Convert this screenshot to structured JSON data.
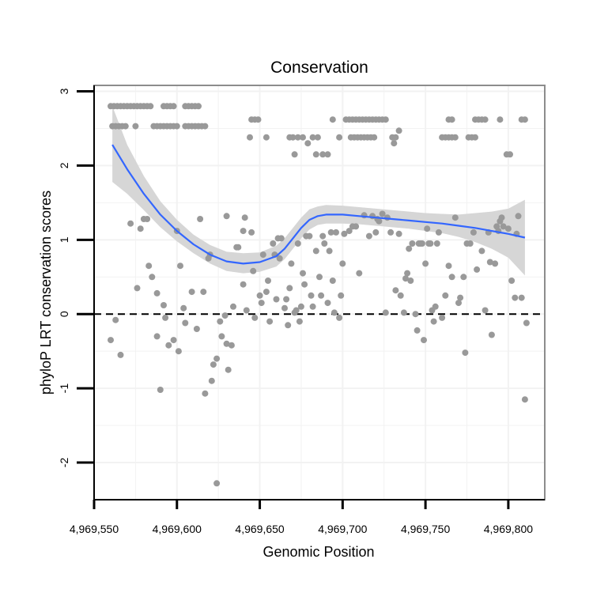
{
  "chart_data": {
    "type": "scatter",
    "title": "Conservation",
    "xlabel": "Genomic Position",
    "ylabel": "phyloP LRT conservation scores",
    "xlim": [
      4969550,
      4969822
    ],
    "ylim": [
      -2.5,
      3.08
    ],
    "xticks": [
      4969550,
      4969600,
      4969650,
      4969700,
      4969750,
      4969800
    ],
    "xtick_labels": [
      "4,969,550",
      "4,969,600",
      "4,969,650",
      "4,969,700",
      "4,969,750",
      "4,969,800"
    ],
    "yticks": [
      -2,
      -1,
      0,
      1,
      2,
      3
    ],
    "ytick_labels": [
      "-2",
      "-1",
      "0",
      "1",
      "2",
      "3"
    ],
    "grid": true,
    "reference_line": {
      "y": 0,
      "style": "dashed"
    },
    "colors": {
      "points": "#999999",
      "smooth": "#3366ff",
      "band": "#d6d6d6",
      "grid": "#f2f2f2",
      "frame": "#8c8c8c"
    },
    "smooth": {
      "x": [
        4969561,
        4969570,
        4969580,
        4969590,
        4969600,
        4969610,
        4969620,
        4969630,
        4969640,
        4969650,
        4969660,
        4969665,
        4969670,
        4969675,
        4969680,
        4969685,
        4969690,
        4969700,
        4969710,
        4969720,
        4969730,
        4969740,
        4969750,
        4969760,
        4969770,
        4969780,
        4969790,
        4969800,
        4969810
      ],
      "y": [
        2.28,
        1.95,
        1.62,
        1.34,
        1.12,
        0.94,
        0.8,
        0.71,
        0.68,
        0.7,
        0.78,
        0.88,
        1.02,
        1.16,
        1.27,
        1.32,
        1.34,
        1.34,
        1.32,
        1.3,
        1.28,
        1.26,
        1.24,
        1.22,
        1.19,
        1.16,
        1.12,
        1.08,
        1.03
      ],
      "ci_low": [
        1.78,
        1.62,
        1.4,
        1.17,
        0.98,
        0.82,
        0.68,
        0.58,
        0.55,
        0.57,
        0.64,
        0.74,
        0.88,
        1.02,
        1.14,
        1.2,
        1.22,
        1.22,
        1.21,
        1.19,
        1.17,
        1.15,
        1.12,
        1.09,
        1.04,
        0.97,
        0.88,
        0.76,
        0.52
      ],
      "ci_high": [
        2.8,
        2.28,
        1.86,
        1.52,
        1.27,
        1.07,
        0.93,
        0.84,
        0.82,
        0.83,
        0.92,
        1.02,
        1.16,
        1.3,
        1.41,
        1.45,
        1.47,
        1.46,
        1.44,
        1.42,
        1.4,
        1.38,
        1.36,
        1.35,
        1.34,
        1.36,
        1.38,
        1.42,
        1.54
      ]
    },
    "points": [
      [
        4969560,
        2.8
      ],
      [
        4969562,
        2.8
      ],
      [
        4969564,
        2.8
      ],
      [
        4969566,
        2.8
      ],
      [
        4969568,
        2.8
      ],
      [
        4969570,
        2.8
      ],
      [
        4969572,
        2.8
      ],
      [
        4969574,
        2.8
      ],
      [
        4969576,
        2.8
      ],
      [
        4969578,
        2.8
      ],
      [
        4969580,
        2.8
      ],
      [
        4969582,
        2.8
      ],
      [
        4969584,
        2.8
      ],
      [
        4969592,
        2.8
      ],
      [
        4969594,
        2.8
      ],
      [
        4969596,
        2.8
      ],
      [
        4969598,
        2.8
      ],
      [
        4969605,
        2.8
      ],
      [
        4969607,
        2.8
      ],
      [
        4969609,
        2.8
      ],
      [
        4969611,
        2.8
      ],
      [
        4969613,
        2.8
      ],
      [
        4969561,
        2.53
      ],
      [
        4969563,
        2.53
      ],
      [
        4969565,
        2.53
      ],
      [
        4969567,
        2.53
      ],
      [
        4969569,
        2.53
      ],
      [
        4969575,
        2.53
      ],
      [
        4969586,
        2.53
      ],
      [
        4969588,
        2.53
      ],
      [
        4969590,
        2.53
      ],
      [
        4969592,
        2.53
      ],
      [
        4969594,
        2.53
      ],
      [
        4969596,
        2.53
      ],
      [
        4969598,
        2.53
      ],
      [
        4969600,
        2.53
      ],
      [
        4969605,
        2.53
      ],
      [
        4969607,
        2.53
      ],
      [
        4969609,
        2.53
      ],
      [
        4969611,
        2.53
      ],
      [
        4969613,
        2.53
      ],
      [
        4969615,
        2.53
      ],
      [
        4969617,
        2.53
      ],
      [
        4969645,
        2.62
      ],
      [
        4969647,
        2.62
      ],
      [
        4969649,
        2.62
      ],
      [
        4969644,
        2.38
      ],
      [
        4969654,
        2.38
      ],
      [
        4969668,
        2.38
      ],
      [
        4969670,
        2.38
      ],
      [
        4969673,
        2.38
      ],
      [
        4969671,
        2.15
      ],
      [
        4969676,
        2.38
      ],
      [
        4969679,
        2.3
      ],
      [
        4969682,
        2.38
      ],
      [
        4969684,
        2.15
      ],
      [
        4969688,
        2.15
      ],
      [
        4969691,
        2.15
      ],
      [
        4969694,
        2.62
      ],
      [
        4969698,
        2.38
      ],
      [
        4969685,
        2.38
      ],
      [
        4969702,
        2.62
      ],
      [
        4969704,
        2.62
      ],
      [
        4969706,
        2.62
      ],
      [
        4969708,
        2.62
      ],
      [
        4969710,
        2.62
      ],
      [
        4969712,
        2.62
      ],
      [
        4969714,
        2.62
      ],
      [
        4969716,
        2.62
      ],
      [
        4969718,
        2.62
      ],
      [
        4969720,
        2.62
      ],
      [
        4969722,
        2.62
      ],
      [
        4969724,
        2.62
      ],
      [
        4969726,
        2.62
      ],
      [
        4969705,
        2.38
      ],
      [
        4969707,
        2.38
      ],
      [
        4969709,
        2.38
      ],
      [
        4969711,
        2.38
      ],
      [
        4969713,
        2.38
      ],
      [
        4969715,
        2.38
      ],
      [
        4969717,
        2.38
      ],
      [
        4969719,
        2.38
      ],
      [
        4969730,
        2.38
      ],
      [
        4969732,
        2.38
      ],
      [
        4969734,
        2.47
      ],
      [
        4969731,
        2.3
      ],
      [
        4969764,
        2.62
      ],
      [
        4969766,
        2.62
      ],
      [
        4969760,
        2.38
      ],
      [
        4969762,
        2.38
      ],
      [
        4969764,
        2.38
      ],
      [
        4969766,
        2.38
      ],
      [
        4969768,
        2.38
      ],
      [
        4969776,
        2.38
      ],
      [
        4969778,
        2.38
      ],
      [
        4969780,
        2.38
      ],
      [
        4969780,
        2.62
      ],
      [
        4969782,
        2.62
      ],
      [
        4969784,
        2.62
      ],
      [
        4969786,
        2.62
      ],
      [
        4969795,
        2.62
      ],
      [
        4969808,
        2.62
      ],
      [
        4969810,
        2.62
      ],
      [
        4969799,
        2.15
      ],
      [
        4969801,
        2.15
      ],
      [
        4969560,
        -0.35
      ],
      [
        4969563,
        -0.08
      ],
      [
        4969566,
        -0.55
      ],
      [
        4969572,
        1.22
      ],
      [
        4969576,
        0.35
      ],
      [
        4969578,
        1.15
      ],
      [
        4969580,
        1.28
      ],
      [
        4969582,
        1.28
      ],
      [
        4969583,
        0.65
      ],
      [
        4969585,
        0.5
      ],
      [
        4969588,
        0.28
      ],
      [
        4969588,
        -0.3
      ],
      [
        4969590,
        -1.02
      ],
      [
        4969592,
        0.12
      ],
      [
        4969593,
        -0.05
      ],
      [
        4969595,
        -0.42
      ],
      [
        4969598,
        -0.35
      ],
      [
        4969600,
        1.12
      ],
      [
        4969601,
        -0.5
      ],
      [
        4969602,
        0.65
      ],
      [
        4969604,
        0.08
      ],
      [
        4969605,
        -0.12
      ],
      [
        4969609,
        0.3
      ],
      [
        4969612,
        -0.2
      ],
      [
        4969614,
        1.28
      ],
      [
        4969616,
        0.3
      ],
      [
        4969617,
        -1.07
      ],
      [
        4969619,
        0.75
      ],
      [
        4969620,
        0.8
      ],
      [
        4969621,
        -0.9
      ],
      [
        4969622,
        -0.68
      ],
      [
        4969624,
        -0.6
      ],
      [
        4969624,
        -2.28
      ],
      [
        4969626,
        -0.1
      ],
      [
        4969627,
        -0.3
      ],
      [
        4969629,
        -0.02
      ],
      [
        4969630,
        -0.4
      ],
      [
        4969630,
        1.32
      ],
      [
        4969631,
        -0.75
      ],
      [
        4969633,
        -0.42
      ],
      [
        4969634,
        0.1
      ],
      [
        4969636,
        0.9
      ],
      [
        4969637,
        0.9
      ],
      [
        4969640,
        0.4
      ],
      [
        4969640,
        1.12
      ],
      [
        4969641,
        1.3
      ],
      [
        4969642,
        0.05
      ],
      [
        4969645,
        1.1
      ],
      [
        4969646,
        0.58
      ],
      [
        4969647,
        -0.05
      ],
      [
        4969650,
        0.25
      ],
      [
        4969651,
        0.15
      ],
      [
        4969652,
        0.8
      ],
      [
        4969654,
        0.3
      ],
      [
        4969655,
        0.45
      ],
      [
        4969656,
        -0.1
      ],
      [
        4969658,
        0.95
      ],
      [
        4969659,
        0.8
      ],
      [
        4969660,
        0.2
      ],
      [
        4969661,
        1.02
      ],
      [
        4969662,
        0.75
      ],
      [
        4969663,
        1.02
      ],
      [
        4969665,
        0.08
      ],
      [
        4969666,
        0.2
      ],
      [
        4969667,
        -0.15
      ],
      [
        4969668,
        0.35
      ],
      [
        4969669,
        0.68
      ],
      [
        4969671,
        0.02
      ],
      [
        4969672,
        0.05
      ],
      [
        4969673,
        0.95
      ],
      [
        4969674,
        -0.1
      ],
      [
        4969675,
        0.1
      ],
      [
        4969676,
        0.55
      ],
      [
        4969677,
        0.4
      ],
      [
        4969678,
        1.05
      ],
      [
        4969680,
        1.05
      ],
      [
        4969681,
        0.25
      ],
      [
        4969682,
        0.1
      ],
      [
        4969684,
        0.85
      ],
      [
        4969686,
        0.5
      ],
      [
        4969687,
        0.25
      ],
      [
        4969688,
        1.05
      ],
      [
        4969689,
        0.95
      ],
      [
        4969691,
        0.15
      ],
      [
        4969692,
        0.85
      ],
      [
        4969693,
        1.1
      ],
      [
        4969694,
        0.45
      ],
      [
        4969695,
        0.02
      ],
      [
        4969696,
        1.1
      ],
      [
        4969698,
        -0.05
      ],
      [
        4969699,
        0.25
      ],
      [
        4969700,
        0.68
      ],
      [
        4969701,
        1.08
      ],
      [
        4969704,
        1.12
      ],
      [
        4969706,
        1.18
      ],
      [
        4969708,
        1.18
      ],
      [
        4969710,
        0.55
      ],
      [
        4969713,
        1.33
      ],
      [
        4969716,
        1.05
      ],
      [
        4969718,
        1.32
      ],
      [
        4969720,
        1.1
      ],
      [
        4969721,
        1.28
      ],
      [
        4969722,
        1.25
      ],
      [
        4969724,
        1.35
      ],
      [
        4969726,
        0.02
      ],
      [
        4969727,
        1.3
      ],
      [
        4969729,
        1.1
      ],
      [
        4969732,
        0.32
      ],
      [
        4969734,
        1.08
      ],
      [
        4969735,
        0.25
      ],
      [
        4969737,
        0.02
      ],
      [
        4969738,
        0.48
      ],
      [
        4969739,
        0.55
      ],
      [
        4969740,
        0.88
      ],
      [
        4969741,
        0.45
      ],
      [
        4969742,
        0.95
      ],
      [
        4969744,
        0.0
      ],
      [
        4969745,
        -0.22
      ],
      [
        4969746,
        0.95
      ],
      [
        4969747,
        0.95
      ],
      [
        4969748,
        0.95
      ],
      [
        4969749,
        -0.35
      ],
      [
        4969750,
        0.68
      ],
      [
        4969751,
        1.15
      ],
      [
        4969752,
        0.95
      ],
      [
        4969753,
        0.95
      ],
      [
        4969754,
        0.05
      ],
      [
        4969755,
        -0.1
      ],
      [
        4969756,
        0.1
      ],
      [
        4969757,
        0.95
      ],
      [
        4969758,
        1.1
      ],
      [
        4969760,
        -0.05
      ],
      [
        4969762,
        0.25
      ],
      [
        4969764,
        0.65
      ],
      [
        4969766,
        0.5
      ],
      [
        4969768,
        1.3
      ],
      [
        4969770,
        0.15
      ],
      [
        4969771,
        0.22
      ],
      [
        4969773,
        0.5
      ],
      [
        4969774,
        -0.52
      ],
      [
        4969775,
        0.95
      ],
      [
        4969777,
        0.95
      ],
      [
        4969779,
        1.1
      ],
      [
        4969781,
        0.6
      ],
      [
        4969784,
        0.85
      ],
      [
        4969786,
        0.05
      ],
      [
        4969788,
        1.1
      ],
      [
        4969789,
        0.7
      ],
      [
        4969790,
        -0.28
      ],
      [
        4969792,
        0.68
      ],
      [
        4969793,
        1.18
      ],
      [
        4969794,
        1.12
      ],
      [
        4969795,
        1.25
      ],
      [
        4969796,
        1.3
      ],
      [
        4969797,
        1.18
      ],
      [
        4969800,
        1.15
      ],
      [
        4969802,
        0.45
      ],
      [
        4969804,
        0.22
      ],
      [
        4969805,
        1.08
      ],
      [
        4969806,
        1.32
      ],
      [
        4969808,
        0.22
      ],
      [
        4969810,
        -1.15
      ],
      [
        4969811,
        -0.12
      ]
    ]
  }
}
